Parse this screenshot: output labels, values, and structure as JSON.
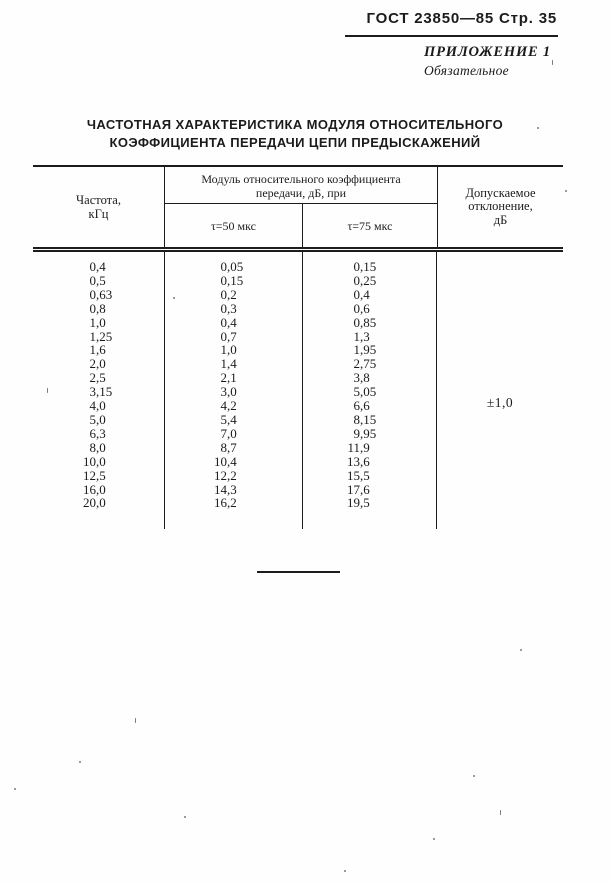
{
  "page_header": {
    "gost_label": "ГОСТ 23850—85 Стр. 35"
  },
  "appendix": {
    "title": "ПРИЛОЖЕНИЕ 1",
    "subtitle": "Обязательное"
  },
  "title": {
    "line1": "ЧАСТОТНАЯ ХАРАКТЕРИСТИКА МОДУЛЯ ОТНОСИТЕЛЬНОГО",
    "line2": "КОЭФФИЦИЕНТА ПЕРЕДАЧИ ЦЕПИ ПРЕДЫСКАЖЕНИЙ"
  },
  "table": {
    "col_frequency_header": {
      "line1": "Частота,",
      "line2": "кГц"
    },
    "col_module_header": {
      "line1": "Модуль относительного коэффициента",
      "line2": "передачи, дБ, при"
    },
    "subcol_tau50": "τ=50 мкс",
    "subcol_tau75": "τ=75 мкс",
    "col_deviation_header": {
      "line1": "Допускаемое",
      "line2": "отклонение,",
      "line3": "дБ"
    },
    "allowed_deviation": "±1,0",
    "rows": [
      [
        "0,4",
        "0,05",
        "0,15"
      ],
      [
        "0,5",
        "0,15",
        "0,25"
      ],
      [
        "0,63",
        "0,2",
        "0,4"
      ],
      [
        "0,8",
        "0,3",
        "0,6"
      ],
      [
        "1,0",
        "0,4",
        "0,85"
      ],
      [
        "1,25",
        "0,7",
        "1,3"
      ],
      [
        "1,6",
        "1,0",
        "1,95"
      ],
      [
        "2,0",
        "1,4",
        "2,75"
      ],
      [
        "2,5",
        "2,1",
        "3,8"
      ],
      [
        "3,15",
        "3,0",
        "5,05"
      ],
      [
        "4,0",
        "4,2",
        "6,6"
      ],
      [
        "5,0",
        "5,4",
        "8,15"
      ],
      [
        "6,3",
        "7,0",
        "9,95"
      ],
      [
        "8,0",
        "8,7",
        "11,9"
      ],
      [
        "10,0",
        "10,4",
        "13,6"
      ],
      [
        "12,5",
        "12,2",
        "15,5"
      ],
      [
        "16,0",
        "14,3",
        "17,6"
      ],
      [
        "20,0",
        "16,2",
        "19,5"
      ]
    ],
    "line_colors": {
      "rule": "#1c1c1c"
    }
  }
}
